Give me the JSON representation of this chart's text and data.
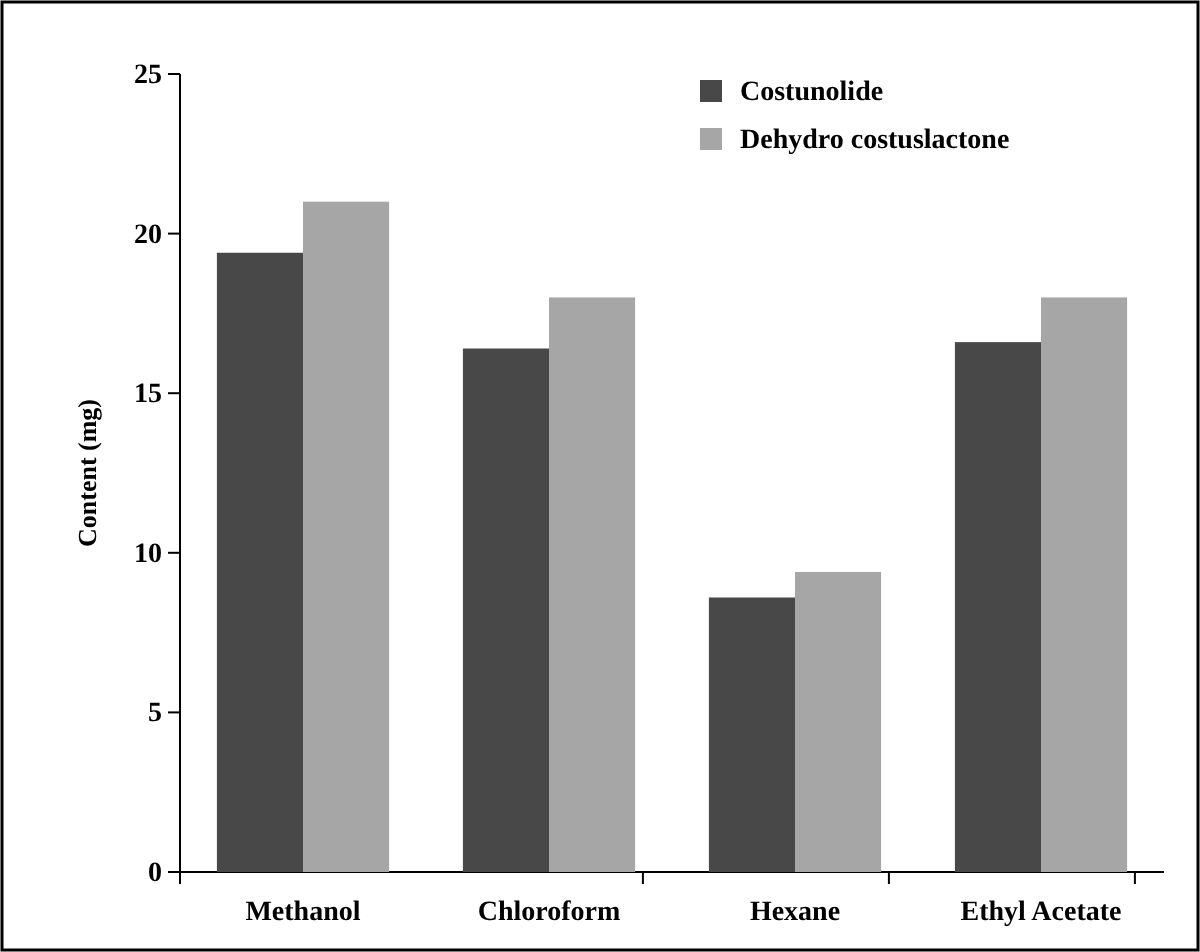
{
  "chart_data": {
    "type": "bar",
    "ylabel": "Content (mg)",
    "categories": [
      "Methanol",
      "Chloroform",
      "Hexane",
      "Ethyl Acetate"
    ],
    "series": [
      {
        "name": "Costunolide",
        "color": "#484848",
        "values": [
          19.4,
          16.4,
          8.6,
          16.6
        ]
      },
      {
        "name": "Dehydro costuslactone",
        "color": "#a6a6a6",
        "values": [
          21,
          18,
          9.4,
          18
        ]
      }
    ],
    "ylim": [
      0,
      25
    ],
    "yticks": [
      0,
      5,
      10,
      15,
      20,
      25
    ],
    "grid": false,
    "legend": "top right"
  }
}
